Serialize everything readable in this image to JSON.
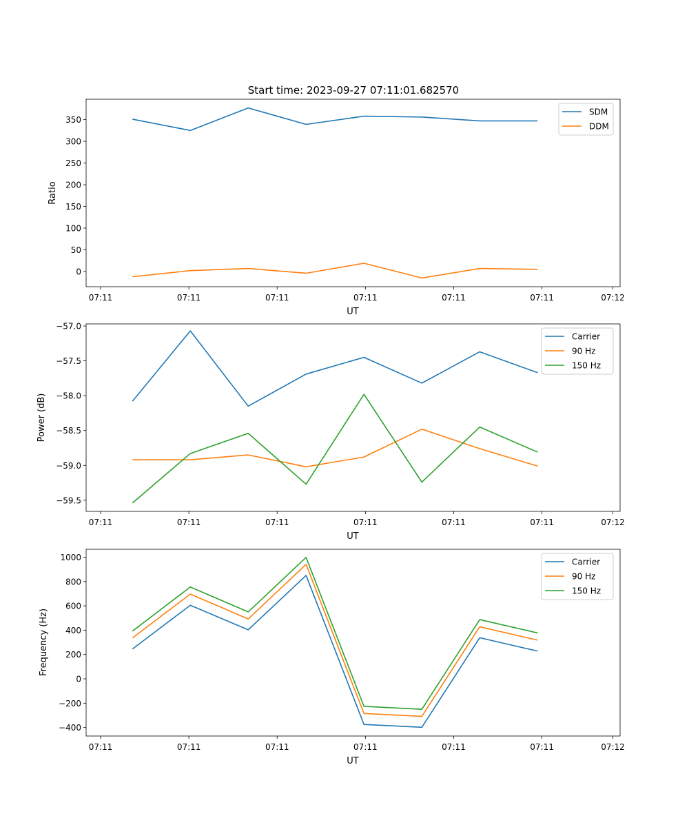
{
  "figure_title": "Start time: 2023-09-27 07:11:01.682570",
  "colors": {
    "c0": "#1f77b4",
    "c1": "#ff7f0e",
    "c2": "#2ca02c",
    "axis": "#000000"
  },
  "chart_data": [
    {
      "type": "line",
      "id": "ratio",
      "title": "Start time: 2023-09-27 07:11:01.682570",
      "xlabel": "UT",
      "ylabel": "Ratio",
      "x": [
        1,
        2,
        3,
        4,
        5,
        6,
        7,
        8
      ],
      "xlim": [
        0.2,
        9.425
      ],
      "xticks": [
        0.45,
        1.975,
        3.5,
        5.025,
        6.55,
        8.075,
        9.3
      ],
      "xtick_labels": [
        "07:11",
        "07:11",
        "07:11",
        "07:11",
        "07:11",
        "07:11",
        "07:12"
      ],
      "ylim": [
        -35,
        397
      ],
      "yticks": [
        0,
        50,
        100,
        150,
        200,
        250,
        300,
        350
      ],
      "ytick_labels": [
        "0",
        "50",
        "100",
        "150",
        "200",
        "250",
        "300",
        "350"
      ],
      "legend_position": "top-right",
      "series": [
        {
          "name": "SDM",
          "color": "#1f77b4",
          "values": [
            351,
            325,
            377,
            339,
            358,
            356,
            347,
            347
          ]
        },
        {
          "name": "DDM",
          "color": "#ff7f0e",
          "values": [
            -12,
            2,
            7,
            -4,
            19,
            -15,
            7,
            5
          ]
        }
      ]
    },
    {
      "type": "line",
      "id": "power",
      "title": "",
      "xlabel": "UT",
      "ylabel": "Power (dB)",
      "x": [
        1,
        2,
        3,
        4,
        5,
        6,
        7,
        8
      ],
      "xlim": [
        0.2,
        9.425
      ],
      "xticks": [
        0.45,
        1.975,
        3.5,
        5.025,
        6.55,
        8.075,
        9.3
      ],
      "xtick_labels": [
        "07:11",
        "07:11",
        "07:11",
        "07:11",
        "07:11",
        "07:11",
        "07:12"
      ],
      "ylim": [
        -59.66,
        -56.97
      ],
      "yticks": [
        -59.5,
        -59.0,
        -58.5,
        -58.0,
        -57.5,
        -57.0
      ],
      "ytick_labels": [
        "−59.5",
        "−59.0",
        "−58.5",
        "−58.0",
        "−57.5",
        "−57.0"
      ],
      "legend_position": "top-right",
      "series": [
        {
          "name": "Carrier",
          "color": "#1f77b4",
          "values": [
            -58.08,
            -57.07,
            -58.15,
            -57.69,
            -57.45,
            -57.82,
            -57.37,
            -57.67
          ]
        },
        {
          "name": "90 Hz",
          "color": "#ff7f0e",
          "values": [
            -58.92,
            -58.92,
            -58.85,
            -59.02,
            -58.88,
            -58.48,
            -58.76,
            -59.01
          ]
        },
        {
          "name": "150 Hz",
          "color": "#2ca02c",
          "values": [
            -59.54,
            -58.83,
            -58.54,
            -59.27,
            -57.98,
            -59.24,
            -58.45,
            -58.81
          ]
        }
      ]
    },
    {
      "type": "line",
      "id": "frequency",
      "title": "",
      "xlabel": "UT",
      "ylabel": "Frequency (Hz)",
      "x": [
        1,
        2,
        3,
        4,
        5,
        6,
        7,
        8
      ],
      "xlim": [
        0.2,
        9.425
      ],
      "xticks": [
        0.45,
        1.975,
        3.5,
        5.025,
        6.55,
        8.075,
        9.3
      ],
      "xtick_labels": [
        "07:11",
        "07:11",
        "07:11",
        "07:11",
        "07:11",
        "07:11",
        "07:12"
      ],
      "ylim": [
        -470,
        1065
      ],
      "yticks": [
        -400,
        -200,
        0,
        200,
        400,
        600,
        800,
        1000
      ],
      "ytick_labels": [
        "−400",
        "−200",
        "0",
        "200",
        "400",
        "600",
        "800",
        "1000"
      ],
      "legend_position": "top-right",
      "series": [
        {
          "name": "Carrier",
          "color": "#1f77b4",
          "values": [
            245,
            605,
            403,
            850,
            -375,
            -398,
            338,
            228
          ]
        },
        {
          "name": "90 Hz",
          "color": "#ff7f0e",
          "values": [
            336,
            697,
            492,
            941,
            -285,
            -308,
            428,
            318
          ]
        },
        {
          "name": "150 Hz",
          "color": "#2ca02c",
          "values": [
            392,
            755,
            550,
            998,
            -226,
            -250,
            487,
            377
          ]
        }
      ]
    }
  ]
}
